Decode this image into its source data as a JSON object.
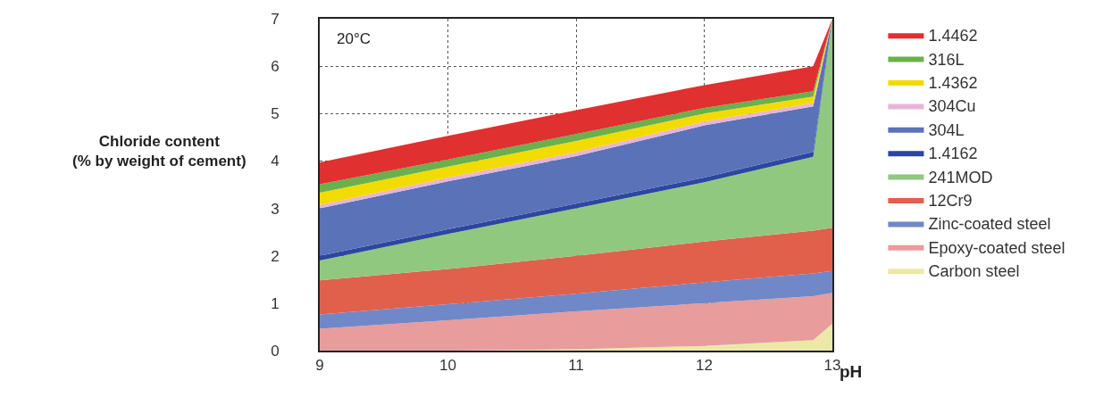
{
  "chart_data": {
    "type": "area",
    "stacked": true,
    "xlabel": "pH",
    "ylabel": "Chloride content\n(% by weight of cement)",
    "annotations": [
      "20°C"
    ],
    "x": [
      9,
      10,
      11,
      12,
      12.85,
      13
    ],
    "xlim": [
      9,
      13
    ],
    "xticks": [
      9,
      10,
      11,
      12,
      13
    ],
    "ylim": [
      0,
      7
    ],
    "yticks": [
      0,
      1,
      2,
      3,
      4,
      5,
      6,
      7
    ],
    "grid": true,
    "legend": "right",
    "series": [
      {
        "name": "Carbon steel",
        "color": "#ece8a8",
        "values": [
          0,
          0,
          0.03,
          0.1,
          0.22,
          0.57
        ]
      },
      {
        "name": "Epoxy-coated steel",
        "color": "#e89c9c",
        "values": [
          0.46,
          0.64,
          0.8,
          0.9,
          0.93,
          0.65
        ]
      },
      {
        "name": "Zinc-coated steel",
        "color": "#7088c8",
        "values": [
          0.3,
          0.34,
          0.37,
          0.44,
          0.48,
          0.46
        ]
      },
      {
        "name": "12Cr9",
        "color": "#e0604c",
        "values": [
          0.72,
          0.74,
          0.8,
          0.86,
          0.9,
          0.91
        ]
      },
      {
        "name": "241MOD",
        "color": "#90c880",
        "values": [
          0.42,
          0.74,
          1.0,
          1.25,
          1.56,
          4.41
        ]
      },
      {
        "name": "1.4162",
        "color": "#2d46a0",
        "values": [
          0.1,
          0.1,
          0.1,
          0.1,
          0.1,
          0
        ]
      },
      {
        "name": "304L",
        "color": "#5a72b8",
        "values": [
          1.0,
          1.01,
          1.0,
          1.1,
          0.96,
          0
        ]
      },
      {
        "name": "304Cu",
        "color": "#e8b4d8",
        "values": [
          0.07,
          0.08,
          0.08,
          0.08,
          0.07,
          0
        ]
      },
      {
        "name": "1.4362",
        "color": "#f2dc00",
        "values": [
          0.26,
          0.23,
          0.24,
          0.17,
          0.14,
          0
        ]
      },
      {
        "name": "316L",
        "color": "#6ab04c",
        "values": [
          0.18,
          0.15,
          0.15,
          0.12,
          0.11,
          0
        ]
      },
      {
        "name": "1.4462",
        "color": "#e03030",
        "values": [
          0.46,
          0.5,
          0.5,
          0.48,
          0.53,
          0
        ]
      }
    ]
  }
}
